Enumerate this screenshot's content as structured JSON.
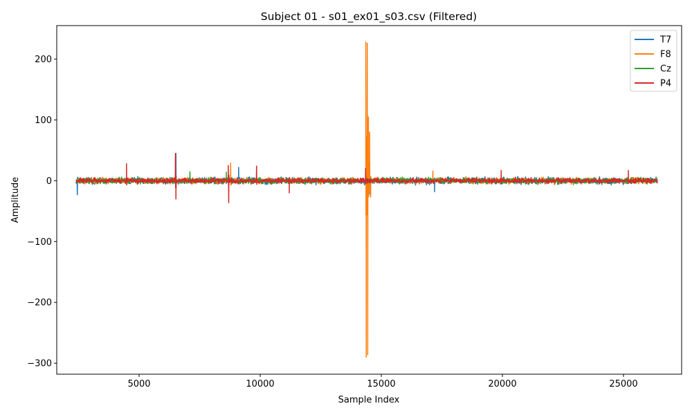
{
  "chart_data": {
    "type": "line",
    "title": "Subject 01 - s01_ex01_s03.csv (Filtered)",
    "xlabel": "Sample Index",
    "ylabel": "Amplitude",
    "xlim": [
      1600,
      27400
    ],
    "ylim": [
      -318,
      255
    ],
    "x_ticks": [
      5000,
      10000,
      15000,
      20000,
      25000
    ],
    "y_ticks": [
      -300,
      -200,
      -100,
      0,
      100,
      200
    ],
    "x_tick_labels": [
      "5000",
      "10000",
      "15000",
      "20000",
      "25000"
    ],
    "y_tick_labels": [
      "−300",
      "−200",
      "−100",
      "0",
      "100",
      "200"
    ],
    "x_range": [
      2400,
      26400
    ],
    "grid": false,
    "legend_position": "top-right",
    "series": [
      {
        "name": "T7",
        "color": "#1f77b4",
        "baseline_amplitude": 8,
        "events": [
          {
            "x": 2450,
            "y": -23
          },
          {
            "x": 6520,
            "y": 45
          },
          {
            "x": 9110,
            "y": 22
          },
          {
            "x": 14480,
            "y": 30
          },
          {
            "x": 14530,
            "y": -22
          },
          {
            "x": 17200,
            "y": -18
          }
        ]
      },
      {
        "name": "F8",
        "color": "#ff7f0e",
        "baseline_amplitude": 7,
        "events": [
          {
            "x": 8780,
            "y": 29
          },
          {
            "x": 14360,
            "y": 228
          },
          {
            "x": 14380,
            "y": -290
          },
          {
            "x": 14420,
            "y": 226
          },
          {
            "x": 14440,
            "y": -286
          },
          {
            "x": 14470,
            "y": 105
          },
          {
            "x": 14520,
            "y": 80
          },
          {
            "x": 14560,
            "y": -27
          },
          {
            "x": 17130,
            "y": 16
          }
        ]
      },
      {
        "name": "Cz",
        "color": "#2ca02c",
        "baseline_amplitude": 7,
        "events": [
          {
            "x": 7100,
            "y": 15
          },
          {
            "x": 8600,
            "y": 14
          }
        ]
      },
      {
        "name": "P4",
        "color": "#d62728",
        "baseline_amplitude": 6,
        "events": [
          {
            "x": 4480,
            "y": 28
          },
          {
            "x": 6500,
            "y": 45
          },
          {
            "x": 6520,
            "y": -30
          },
          {
            "x": 8700,
            "y": -36
          },
          {
            "x": 8680,
            "y": 25
          },
          {
            "x": 9850,
            "y": 24
          },
          {
            "x": 11200,
            "y": -20
          },
          {
            "x": 14350,
            "y": 20
          },
          {
            "x": 19950,
            "y": 17
          },
          {
            "x": 25200,
            "y": 17
          }
        ]
      }
    ]
  }
}
